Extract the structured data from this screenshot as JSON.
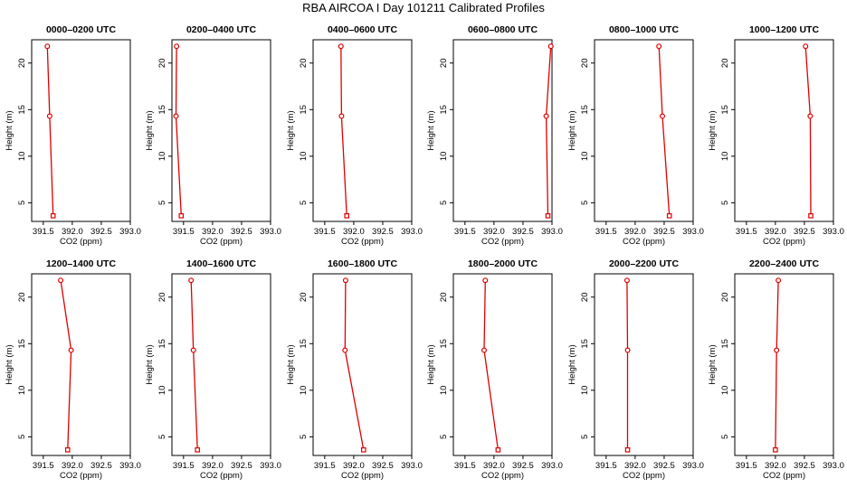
{
  "title": "RBA AIRCOA I  Day 101211  Calibrated Profiles",
  "styles": {
    "line_color": "#e00000",
    "axis_color": "#000000",
    "background": "#ffffff"
  },
  "chart_data": [
    {
      "type": "line",
      "title": "0000–0200 UTC",
      "xlabel": "CO2 (ppm)",
      "ylabel": "Height (m)",
      "xlim": [
        391.3,
        393.0
      ],
      "ylim": [
        3.0,
        22.5
      ],
      "xticks": [
        391.5,
        392.0,
        392.5,
        393.0
      ],
      "yticks": [
        5,
        10,
        15,
        20
      ],
      "xticklabels": [
        "391.5",
        "392.0",
        "392.5",
        "393.0"
      ],
      "yticklabels": [
        "5",
        "10",
        "15",
        "20"
      ],
      "points": [
        {
          "x": 391.57,
          "y": 21.8
        },
        {
          "x": 391.61,
          "y": 14.3
        },
        {
          "x": 391.67,
          "y": 3.6
        }
      ]
    },
    {
      "type": "line",
      "title": "0200–0400 UTC",
      "xlabel": "CO2 (ppm)",
      "ylabel": "Height (m)",
      "xlim": [
        391.3,
        393.0
      ],
      "ylim": [
        3.0,
        22.5
      ],
      "xticks": [
        391.5,
        392.0,
        392.5,
        393.0
      ],
      "yticks": [
        5,
        10,
        15,
        20
      ],
      "xticklabels": [
        "391.5",
        "392.0",
        "392.5",
        "393.0"
      ],
      "yticklabels": [
        "5",
        "10",
        "15",
        "20"
      ],
      "points": [
        {
          "x": 391.38,
          "y": 21.8
        },
        {
          "x": 391.37,
          "y": 14.3
        },
        {
          "x": 391.46,
          "y": 3.6
        }
      ]
    },
    {
      "type": "line",
      "title": "0400–0600 UTC",
      "xlabel": "CO2 (ppm)",
      "ylabel": "Height (m)",
      "xlim": [
        391.3,
        393.0
      ],
      "ylim": [
        3.0,
        22.5
      ],
      "xticks": [
        391.5,
        392.0,
        392.5,
        393.0
      ],
      "yticks": [
        5,
        10,
        15,
        20
      ],
      "xticklabels": [
        "391.5",
        "392.0",
        "392.5",
        "393.0"
      ],
      "yticklabels": [
        "5",
        "10",
        "15",
        "20"
      ],
      "points": [
        {
          "x": 391.78,
          "y": 21.8
        },
        {
          "x": 391.79,
          "y": 14.3
        },
        {
          "x": 391.88,
          "y": 3.6
        }
      ]
    },
    {
      "type": "line",
      "title": "0600–0800 UTC",
      "xlabel": "CO2 (ppm)",
      "ylabel": "Height (m)",
      "xlim": [
        391.3,
        393.0
      ],
      "ylim": [
        3.0,
        22.5
      ],
      "xticks": [
        391.5,
        392.0,
        392.5,
        393.0
      ],
      "yticks": [
        5,
        10,
        15,
        20
      ],
      "xticklabels": [
        "391.5",
        "392.0",
        "392.5",
        "393.0"
      ],
      "yticklabels": [
        "5",
        "10",
        "15",
        "20"
      ],
      "points": [
        {
          "x": 392.98,
          "y": 21.8
        },
        {
          "x": 392.9,
          "y": 14.3
        },
        {
          "x": 392.93,
          "y": 3.6
        }
      ]
    },
    {
      "type": "line",
      "title": "0800–1000 UTC",
      "xlabel": "CO2 (ppm)",
      "ylabel": "Height (m)",
      "xlim": [
        391.3,
        393.0
      ],
      "ylim": [
        3.0,
        22.5
      ],
      "xticks": [
        391.5,
        392.0,
        392.5,
        393.0
      ],
      "yticks": [
        5,
        10,
        15,
        20
      ],
      "xticklabels": [
        "391.5",
        "392.0",
        "392.5",
        "393.0"
      ],
      "yticklabels": [
        "5",
        "10",
        "15",
        "20"
      ],
      "points": [
        {
          "x": 392.41,
          "y": 21.8
        },
        {
          "x": 392.47,
          "y": 14.3
        },
        {
          "x": 392.59,
          "y": 3.6
        }
      ]
    },
    {
      "type": "line",
      "title": "1000–1200 UTC",
      "xlabel": "CO2 (ppm)",
      "ylabel": "Height (m)",
      "xlim": [
        391.3,
        393.0
      ],
      "ylim": [
        3.0,
        22.5
      ],
      "xticks": [
        391.5,
        392.0,
        392.5,
        393.0
      ],
      "yticks": [
        5,
        10,
        15,
        20
      ],
      "xticklabels": [
        "391.5",
        "392.0",
        "392.5",
        "393.0"
      ],
      "yticklabels": [
        "5",
        "10",
        "15",
        "20"
      ],
      "points": [
        {
          "x": 392.52,
          "y": 21.8
        },
        {
          "x": 392.6,
          "y": 14.3
        },
        {
          "x": 392.61,
          "y": 3.6
        }
      ]
    },
    {
      "type": "line",
      "title": "1200–1400 UTC",
      "xlabel": "CO2 (ppm)",
      "ylabel": "Height (m)",
      "xlim": [
        391.3,
        393.0
      ],
      "ylim": [
        3.0,
        22.5
      ],
      "xticks": [
        391.5,
        392.0,
        392.5,
        393.0
      ],
      "yticks": [
        5,
        10,
        15,
        20
      ],
      "xticklabels": [
        "391.5",
        "392.0",
        "392.5",
        "393.0"
      ],
      "yticklabels": [
        "5",
        "10",
        "15",
        "20"
      ],
      "points": [
        {
          "x": 391.8,
          "y": 21.8
        },
        {
          "x": 391.98,
          "y": 14.3
        },
        {
          "x": 391.92,
          "y": 3.6
        }
      ]
    },
    {
      "type": "line",
      "title": "1400–1600 UTC",
      "xlabel": "CO2 (ppm)",
      "ylabel": "Height (m)",
      "xlim": [
        391.3,
        393.0
      ],
      "ylim": [
        3.0,
        22.5
      ],
      "xticks": [
        391.5,
        392.0,
        392.5,
        393.0
      ],
      "yticks": [
        5,
        10,
        15,
        20
      ],
      "xticklabels": [
        "391.5",
        "392.0",
        "392.5",
        "393.0"
      ],
      "yticklabels": [
        "5",
        "10",
        "15",
        "20"
      ],
      "points": [
        {
          "x": 391.63,
          "y": 21.8
        },
        {
          "x": 391.67,
          "y": 14.3
        },
        {
          "x": 391.74,
          "y": 3.6
        }
      ]
    },
    {
      "type": "line",
      "title": "1600–1800 UTC",
      "xlabel": "CO2 (ppm)",
      "ylabel": "Height (m)",
      "xlim": [
        391.3,
        393.0
      ],
      "ylim": [
        3.0,
        22.5
      ],
      "xticks": [
        391.5,
        392.0,
        392.5,
        393.0
      ],
      "yticks": [
        5,
        10,
        15,
        20
      ],
      "xticklabels": [
        "391.5",
        "392.0",
        "392.5",
        "393.0"
      ],
      "yticklabels": [
        "5",
        "10",
        "15",
        "20"
      ],
      "points": [
        {
          "x": 391.86,
          "y": 21.8
        },
        {
          "x": 391.85,
          "y": 14.3
        },
        {
          "x": 392.17,
          "y": 3.6
        }
      ]
    },
    {
      "type": "line",
      "title": "1800–2000 UTC",
      "xlabel": "CO2 (ppm)",
      "ylabel": "Height (m)",
      "xlim": [
        391.3,
        393.0
      ],
      "ylim": [
        3.0,
        22.5
      ],
      "xticks": [
        391.5,
        392.0,
        392.5,
        393.0
      ],
      "yticks": [
        5,
        10,
        15,
        20
      ],
      "xticklabels": [
        "391.5",
        "392.0",
        "392.5",
        "393.0"
      ],
      "yticklabels": [
        "5",
        "10",
        "15",
        "20"
      ],
      "points": [
        {
          "x": 391.85,
          "y": 21.8
        },
        {
          "x": 391.83,
          "y": 14.3
        },
        {
          "x": 392.07,
          "y": 3.6
        }
      ]
    },
    {
      "type": "line",
      "title": "2000–2200 UTC",
      "xlabel": "CO2 (ppm)",
      "ylabel": "Height (m)",
      "xlim": [
        391.3,
        393.0
      ],
      "ylim": [
        3.0,
        22.5
      ],
      "xticks": [
        391.5,
        392.0,
        392.5,
        393.0
      ],
      "yticks": [
        5,
        10,
        15,
        20
      ],
      "xticklabels": [
        "391.5",
        "392.0",
        "392.5",
        "393.0"
      ],
      "yticklabels": [
        "5",
        "10",
        "15",
        "20"
      ],
      "points": [
        {
          "x": 391.86,
          "y": 21.8
        },
        {
          "x": 391.87,
          "y": 14.3
        },
        {
          "x": 391.87,
          "y": 3.6
        }
      ]
    },
    {
      "type": "line",
      "title": "2200–2400 UTC",
      "xlabel": "CO2 (ppm)",
      "ylabel": "Height (m)",
      "xlim": [
        391.3,
        393.0
      ],
      "ylim": [
        3.0,
        22.5
      ],
      "xticks": [
        391.5,
        392.0,
        392.5,
        393.0
      ],
      "yticks": [
        5,
        10,
        15,
        20
      ],
      "xticklabels": [
        "391.5",
        "392.0",
        "392.5",
        "393.0"
      ],
      "yticklabels": [
        "5",
        "10",
        "15",
        "20"
      ],
      "points": [
        {
          "x": 392.05,
          "y": 21.8
        },
        {
          "x": 392.02,
          "y": 14.3
        },
        {
          "x": 392.0,
          "y": 3.6
        }
      ]
    }
  ]
}
